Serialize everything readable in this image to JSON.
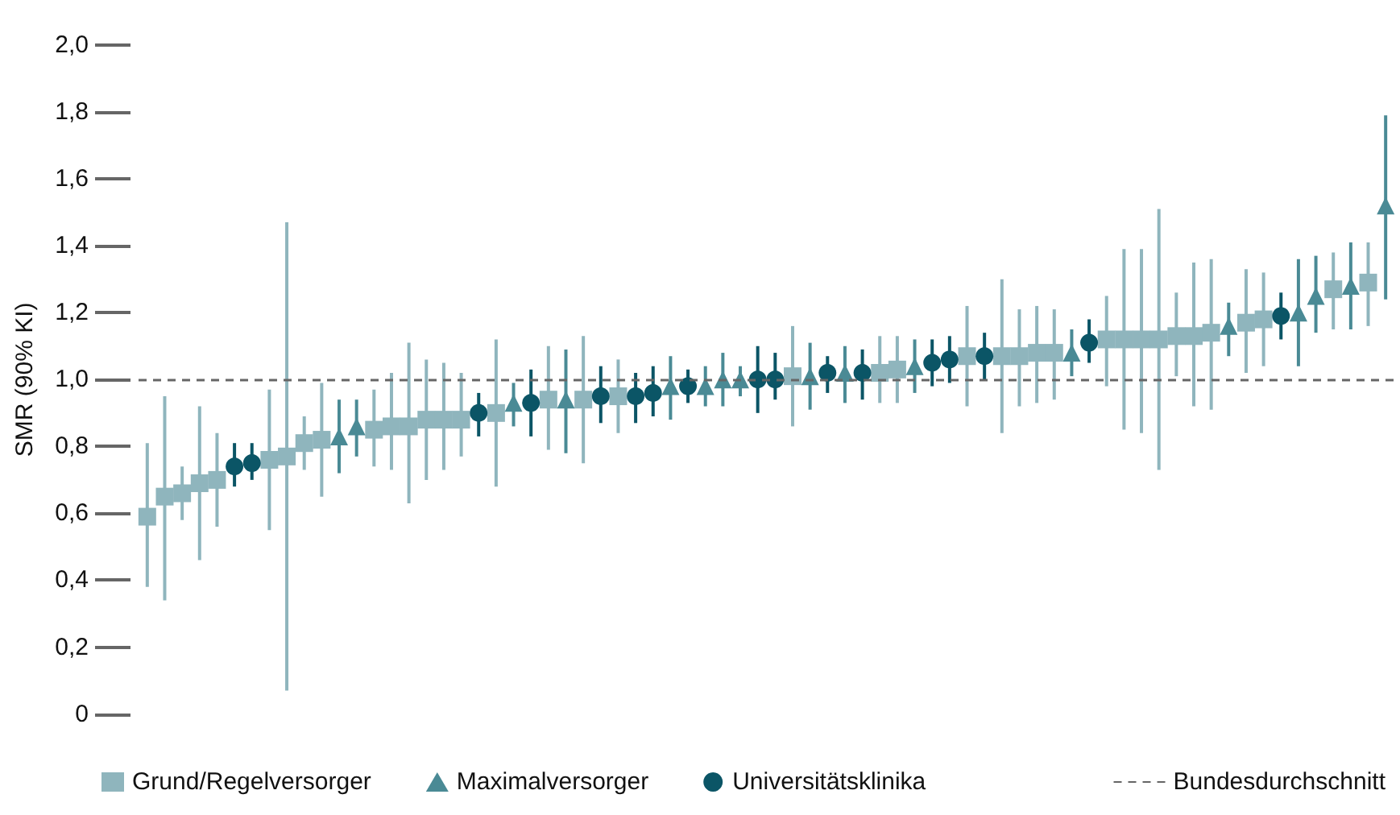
{
  "chart_data": {
    "type": "scatter",
    "ylabel": "SMR (90% KI)",
    "categories": [
      null,
      null,
      null,
      null,
      null,
      null,
      null,
      null,
      null,
      null,
      null,
      null,
      null,
      null,
      null,
      null,
      null,
      null,
      null,
      null,
      null,
      null,
      null,
      null,
      null,
      null,
      null,
      null,
      null,
      null,
      null,
      null,
      null,
      null,
      null,
      null,
      null,
      null,
      null,
      null,
      null,
      null,
      null,
      null,
      null,
      null,
      null,
      null,
      null,
      null,
      null,
      null,
      null,
      null,
      null,
      null,
      null,
      null,
      null,
      null,
      null,
      null,
      null,
      null,
      null,
      null,
      null,
      null,
      null,
      null,
      null,
      null
    ],
    "ylim": [
      0,
      2.0
    ],
    "yticks": [
      {
        "value": 0,
        "label": "0"
      },
      {
        "value": 0.2,
        "label": "0,2"
      },
      {
        "value": 0.4,
        "label": "0,4"
      },
      {
        "value": 0.6,
        "label": "0,6"
      },
      {
        "value": 0.8,
        "label": "0,8"
      },
      {
        "value": 1.0,
        "label": "1,0"
      },
      {
        "value": 1.2,
        "label": "1,2"
      },
      {
        "value": 1.4,
        "label": "1,4"
      },
      {
        "value": 1.6,
        "label": "1,6"
      },
      {
        "value": 1.8,
        "label": "1,8"
      },
      {
        "value": 2.0,
        "label": "2,0"
      }
    ],
    "grid": false,
    "legend": "bottom",
    "series": [
      {
        "name": "Grund/Regelversorger",
        "color": "#8fb5bd",
        "marker": "square",
        "values": [
          0.59,
          0.65,
          0.66,
          0.69,
          0.7,
          null,
          null,
          0.76,
          0.77,
          0.81,
          0.82,
          null,
          null,
          0.85,
          0.86,
          0.86,
          0.88,
          0.88,
          0.88,
          null,
          0.9,
          null,
          null,
          0.94,
          null,
          0.94,
          null,
          0.95,
          null,
          null,
          null,
          null,
          null,
          null,
          null,
          null,
          null,
          1.01,
          null,
          null,
          null,
          null,
          1.02,
          1.03,
          null,
          null,
          null,
          1.07,
          null,
          1.07,
          1.07,
          1.08,
          1.08,
          null,
          null,
          1.12,
          1.12,
          1.12,
          1.12,
          1.13,
          1.13,
          1.14,
          null,
          1.17,
          1.18,
          null,
          null,
          null,
          1.27,
          null,
          1.29,
          null
        ],
        "errors": [
          [
            0.38,
            0.81
          ],
          [
            0.34,
            0.95
          ],
          [
            0.58,
            0.74
          ],
          [
            0.46,
            0.92
          ],
          [
            0.56,
            0.84
          ],
          null,
          null,
          [
            0.55,
            0.97
          ],
          [
            0.07,
            1.47
          ],
          [
            0.73,
            0.89
          ],
          [
            0.65,
            0.99
          ],
          null,
          null,
          [
            0.74,
            0.97
          ],
          [
            0.73,
            1.02
          ],
          [
            0.63,
            1.11
          ],
          [
            0.7,
            1.06
          ],
          [
            0.73,
            1.05
          ],
          [
            0.77,
            1.02
          ],
          null,
          [
            0.68,
            1.12
          ],
          null,
          null,
          [
            0.79,
            1.1
          ],
          null,
          [
            0.75,
            1.13
          ],
          null,
          [
            0.84,
            1.06
          ],
          null,
          null,
          null,
          null,
          null,
          null,
          null,
          null,
          null,
          [
            0.86,
            1.16
          ],
          null,
          null,
          null,
          null,
          [
            0.93,
            1.13
          ],
          [
            0.93,
            1.13
          ],
          null,
          null,
          null,
          [
            0.92,
            1.22
          ],
          null,
          [
            0.84,
            1.3
          ],
          [
            0.92,
            1.21
          ],
          [
            0.93,
            1.22
          ],
          [
            0.94,
            1.21
          ],
          null,
          null,
          [
            0.98,
            1.25
          ],
          [
            0.85,
            1.39
          ],
          [
            0.84,
            1.39
          ],
          [
            0.73,
            1.51
          ],
          [
            1.01,
            1.26
          ],
          [
            0.92,
            1.35
          ],
          [
            0.91,
            1.36
          ],
          null,
          [
            1.02,
            1.33
          ],
          [
            1.04,
            1.32
          ],
          null,
          null,
          null,
          [
            1.15,
            1.38
          ],
          null,
          [
            1.16,
            1.41
          ],
          null
        ]
      },
      {
        "name": "Maximalversorger",
        "color": "#4a8a95",
        "marker": "triangle",
        "values": [
          null,
          null,
          null,
          null,
          null,
          null,
          null,
          null,
          null,
          null,
          null,
          0.83,
          0.86,
          null,
          null,
          null,
          null,
          null,
          null,
          null,
          null,
          0.93,
          null,
          null,
          0.94,
          null,
          null,
          null,
          null,
          null,
          0.98,
          null,
          0.98,
          1.0,
          1.0,
          null,
          null,
          null,
          1.01,
          null,
          1.02,
          null,
          null,
          null,
          1.04,
          null,
          null,
          null,
          null,
          null,
          null,
          null,
          null,
          1.08,
          null,
          null,
          null,
          null,
          null,
          null,
          null,
          null,
          1.16,
          null,
          null,
          null,
          1.2,
          1.25,
          null,
          1.28,
          null,
          1.52
        ],
        "errors": [
          null,
          null,
          null,
          null,
          null,
          null,
          null,
          null,
          null,
          null,
          null,
          [
            0.72,
            0.94
          ],
          [
            0.77,
            0.94
          ],
          null,
          null,
          null,
          null,
          null,
          null,
          null,
          null,
          [
            0.86,
            0.99
          ],
          null,
          null,
          [
            0.78,
            1.09
          ],
          null,
          null,
          null,
          null,
          null,
          [
            0.88,
            1.07
          ],
          null,
          [
            0.92,
            1.04
          ],
          [
            0.92,
            1.08
          ],
          [
            0.95,
            1.04
          ],
          null,
          null,
          null,
          [
            0.91,
            1.11
          ],
          null,
          [
            0.93,
            1.1
          ],
          null,
          null,
          null,
          [
            0.96,
            1.12
          ],
          null,
          null,
          null,
          null,
          null,
          null,
          null,
          null,
          [
            1.01,
            1.15
          ],
          null,
          null,
          null,
          null,
          null,
          null,
          null,
          null,
          [
            1.07,
            1.23
          ],
          null,
          null,
          null,
          [
            1.04,
            1.36
          ],
          [
            1.14,
            1.37
          ],
          null,
          [
            1.15,
            1.41
          ],
          null,
          [
            1.24,
            1.79
          ]
        ]
      },
      {
        "name": "Universitätsklinika",
        "color": "#0b5566",
        "marker": "circle",
        "values": [
          null,
          null,
          null,
          null,
          null,
          0.74,
          0.75,
          null,
          null,
          null,
          null,
          null,
          null,
          null,
          null,
          null,
          null,
          null,
          null,
          0.9,
          null,
          null,
          0.93,
          null,
          null,
          null,
          0.95,
          null,
          0.95,
          0.96,
          null,
          0.98,
          null,
          null,
          null,
          1.0,
          1.0,
          null,
          null,
          1.02,
          null,
          1.02,
          null,
          null,
          null,
          1.05,
          1.06,
          null,
          1.07,
          null,
          null,
          null,
          null,
          null,
          1.11,
          null,
          null,
          null,
          null,
          null,
          null,
          null,
          null,
          null,
          null,
          1.19,
          null,
          null,
          null,
          null,
          null,
          null
        ],
        "errors": [
          null,
          null,
          null,
          null,
          null,
          [
            0.68,
            0.81
          ],
          [
            0.7,
            0.81
          ],
          null,
          null,
          null,
          null,
          null,
          null,
          null,
          null,
          null,
          null,
          null,
          null,
          [
            0.83,
            0.96
          ],
          null,
          null,
          [
            0.83,
            1.03
          ],
          null,
          null,
          null,
          [
            0.87,
            1.04
          ],
          null,
          [
            0.87,
            1.02
          ],
          [
            0.89,
            1.04
          ],
          null,
          [
            0.93,
            1.03
          ],
          null,
          null,
          null,
          [
            0.9,
            1.1
          ],
          [
            0.94,
            1.08
          ],
          null,
          null,
          [
            0.96,
            1.07
          ],
          null,
          [
            0.94,
            1.09
          ],
          null,
          null,
          null,
          [
            0.98,
            1.12
          ],
          [
            0.99,
            1.13
          ],
          null,
          [
            1.0,
            1.14
          ],
          null,
          null,
          null,
          null,
          null,
          [
            1.05,
            1.18
          ],
          null,
          null,
          null,
          null,
          null,
          null,
          null,
          null,
          null,
          null,
          [
            1.12,
            1.26
          ],
          null,
          null,
          null,
          null,
          null,
          null
        ]
      }
    ],
    "ref_lines": [
      {
        "axis": "y",
        "value": 1.0,
        "label": "Bundesdurchschnitt",
        "color": "#666666",
        "line_style": "dashed"
      }
    ]
  }
}
